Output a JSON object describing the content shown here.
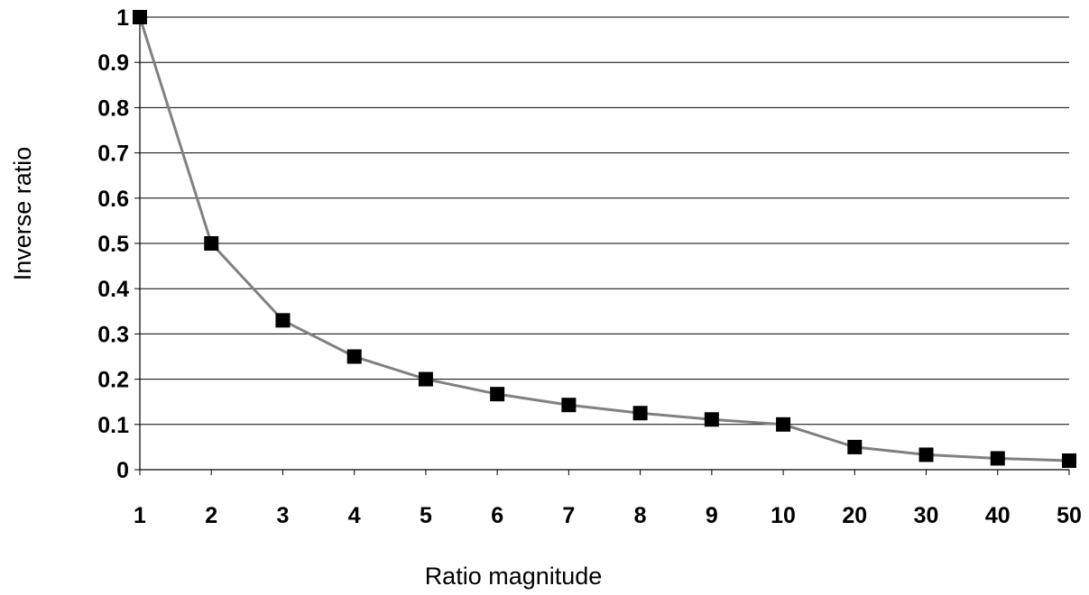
{
  "chart_data": {
    "type": "line",
    "title": "",
    "xlabel": "Ratio magnitude",
    "ylabel": "Inverse ratio",
    "categories": [
      "1",
      "2",
      "3",
      "4",
      "5",
      "6",
      "7",
      "8",
      "9",
      "10",
      "20",
      "30",
      "40",
      "50"
    ],
    "values": [
      1,
      0.5,
      0.33,
      0.25,
      0.2,
      0.167,
      0.143,
      0.125,
      0.111,
      0.1,
      0.05,
      0.033,
      0.025,
      0.02
    ],
    "ylim": [
      0,
      1
    ],
    "yticks": [
      "0",
      "0.1",
      "0.2",
      "0.3",
      "0.4",
      "0.5",
      "0.6",
      "0.7",
      "0.8",
      "0.9",
      "1"
    ],
    "grid": "horizontal",
    "line_color": "#808080",
    "marker_color": "#000000",
    "marker": "square",
    "legend": "none"
  }
}
